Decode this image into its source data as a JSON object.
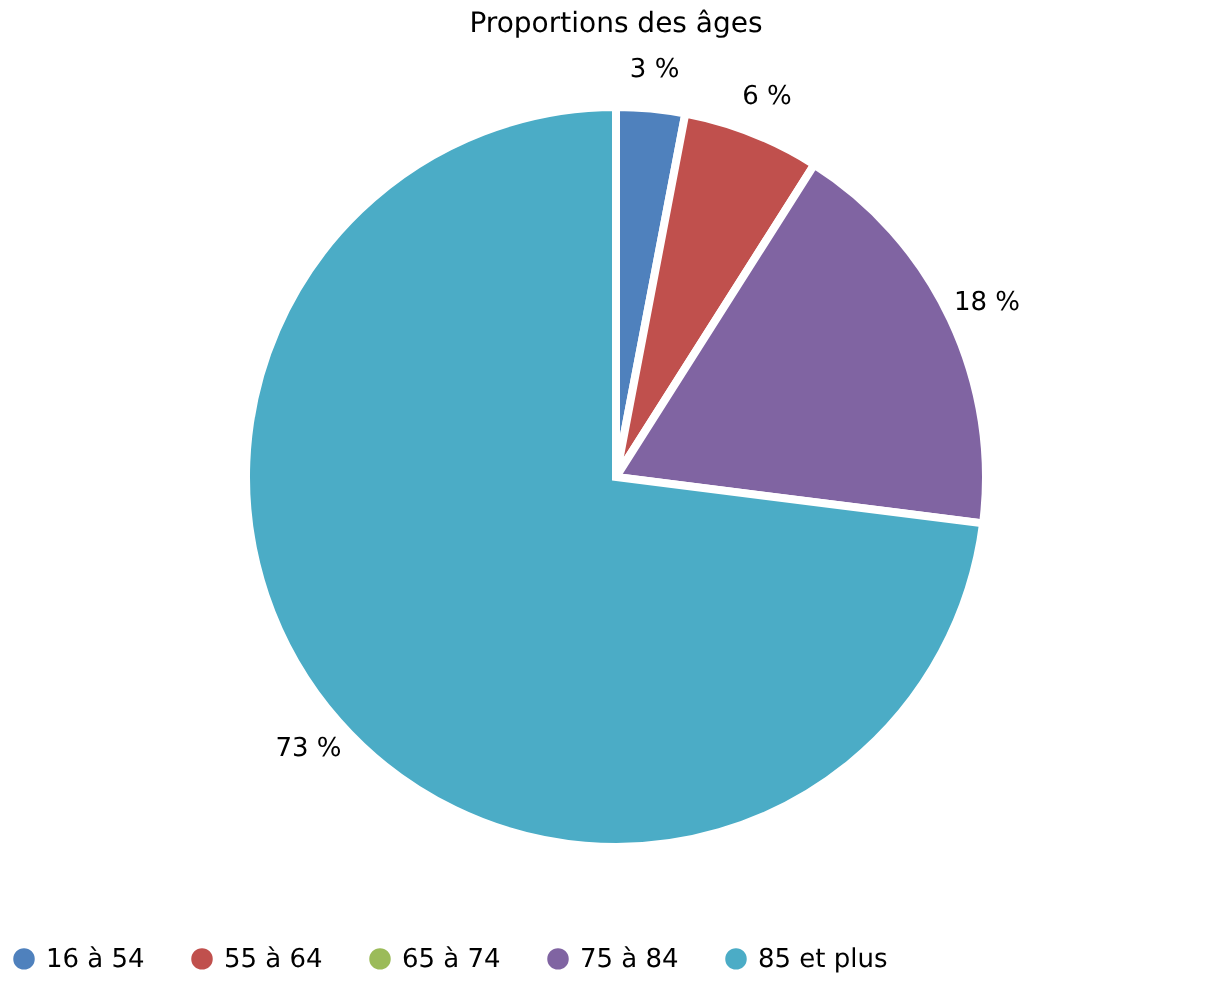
{
  "chart_data": {
    "type": "pie",
    "title": "Proportions des âges",
    "categories": [
      "16 à 54",
      "55 à 64",
      "65 à 74",
      "75 à 84",
      "85 et plus"
    ],
    "values": [
      3,
      6,
      0,
      18,
      73
    ],
    "value_labels": [
      "3 %",
      "6 %",
      null,
      "18 %",
      "73 %"
    ],
    "colors": [
      "#4f81bd",
      "#c0504d",
      "#9bbb59",
      "#8064a2",
      "#4bacc6"
    ],
    "legend": "bottom"
  }
}
